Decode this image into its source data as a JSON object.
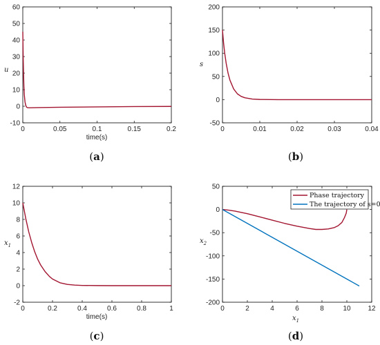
{
  "chart_data": [
    {
      "id": "a",
      "type": "line",
      "panel_label": "a",
      "xlabel": "time(s)",
      "ylabel": "u",
      "xlim": [
        0,
        0.2
      ],
      "ylim": [
        -10,
        60
      ],
      "xticks": [
        0,
        0.05,
        0.1,
        0.15,
        0.2
      ],
      "xtick_labels": [
        "0",
        "0.05",
        "0.1",
        "0.15",
        "0.2"
      ],
      "yticks": [
        -10,
        0,
        10,
        20,
        30,
        40,
        50,
        60
      ],
      "ytick_labels": [
        "-10",
        "0",
        "10",
        "20",
        "30",
        "40",
        "50",
        "60"
      ],
      "grid": false,
      "series": [
        {
          "color": "#a2142f",
          "x": [
            0,
            0.0005,
            0.001,
            0.0015,
            0.002,
            0.003,
            0.004,
            0.005,
            0.006,
            0.008,
            0.01,
            0.02,
            0.05,
            0.1,
            0.15,
            0.2
          ],
          "y": [
            45,
            30,
            20,
            12,
            7,
            2.5,
            0.5,
            -0.5,
            -0.8,
            -0.9,
            -0.9,
            -0.8,
            -0.6,
            -0.4,
            -0.2,
            -0.1
          ]
        }
      ]
    },
    {
      "id": "b",
      "type": "line",
      "panel_label": "b",
      "xlabel": "",
      "ylabel": "s",
      "xlim": [
        0,
        0.04
      ],
      "ylim": [
        -50,
        200
      ],
      "xticks": [
        0,
        0.01,
        0.02,
        0.03,
        0.04
      ],
      "xtick_labels": [
        "0",
        "0.01",
        "0.02",
        "0.03",
        "0.04"
      ],
      "yticks": [
        -50,
        0,
        50,
        100,
        150,
        200
      ],
      "ytick_labels": [
        "-50",
        "0",
        "50",
        "100",
        "150",
        "200"
      ],
      "grid": false,
      "series": [
        {
          "color": "#a2142f",
          "x": [
            0,
            0.0003,
            0.0006,
            0.001,
            0.0015,
            0.002,
            0.003,
            0.004,
            0.005,
            0.006,
            0.008,
            0.01,
            0.015,
            0.02,
            0.03,
            0.04
          ],
          "y": [
            150,
            122,
            100,
            78,
            57,
            42,
            23,
            12.5,
            7,
            4,
            1.2,
            0.4,
            0,
            0,
            0,
            0
          ]
        }
      ]
    },
    {
      "id": "c",
      "type": "line",
      "panel_label": "c",
      "xlabel": "time(s)",
      "ylabel": "x1",
      "xlim": [
        0,
        1
      ],
      "ylim": [
        -2,
        12
      ],
      "xticks": [
        0,
        0.2,
        0.4,
        0.6,
        0.8,
        1
      ],
      "xtick_labels": [
        "0",
        "0.2",
        "0.4",
        "0.6",
        "0.8",
        "1"
      ],
      "yticks": [
        -2,
        0,
        2,
        4,
        6,
        8,
        10,
        12
      ],
      "ytick_labels": [
        "-2",
        "0",
        "2",
        "4",
        "6",
        "8",
        "10",
        "12"
      ],
      "grid": false,
      "series": [
        {
          "color": "#a2142f",
          "x": [
            0,
            0.02,
            0.04,
            0.06,
            0.08,
            0.1,
            0.12,
            0.15,
            0.18,
            0.2,
            0.25,
            0.3,
            0.35,
            0.4,
            0.5,
            0.6,
            0.8,
            1.0
          ],
          "y": [
            10,
            8.1,
            6.5,
            5.2,
            4.1,
            3.2,
            2.5,
            1.7,
            1.1,
            0.8,
            0.35,
            0.15,
            0.07,
            0.03,
            0.01,
            0,
            0,
            0
          ]
        }
      ]
    },
    {
      "id": "d",
      "type": "line",
      "panel_label": "d",
      "xlabel": "x1",
      "ylabel": "x2",
      "xlim": [
        0,
        12
      ],
      "ylim": [
        -200,
        50
      ],
      "xticks": [
        0,
        2,
        4,
        6,
        8,
        10,
        12
      ],
      "xtick_labels": [
        "0",
        "2",
        "4",
        "6",
        "8",
        "10",
        "12"
      ],
      "yticks": [
        -200,
        -150,
        -100,
        -50,
        0,
        50
      ],
      "ytick_labels": [
        "-200",
        "-150",
        "-100",
        "-50",
        "0",
        "50"
      ],
      "grid": false,
      "legend_position": "top-right",
      "series": [
        {
          "name": "Phase trajectory",
          "color": "#a2142f",
          "x": [
            0,
            0.5,
            1,
            2,
            3,
            4,
            5,
            6,
            7,
            7.5,
            8,
            8.5,
            9,
            9.3,
            9.6,
            9.8,
            9.95,
            10
          ],
          "y": [
            0,
            -1.5,
            -3.5,
            -9,
            -16,
            -23,
            -30,
            -36,
            -41,
            -43,
            -43,
            -42,
            -39,
            -35,
            -28,
            -18,
            -8,
            0
          ]
        },
        {
          "name": "The trajectory of s=0",
          "color": "#0072bd",
          "x": [
            0,
            11
          ],
          "y": [
            0,
            -165
          ]
        }
      ]
    }
  ],
  "labels": {
    "u": "u",
    "s": "s",
    "x1_base": "x",
    "x1_sub": "1",
    "x2_base": "x",
    "x2_sub": "2",
    "time": "time(s)",
    "panel_a": "a",
    "panel_b": "b",
    "panel_c": "c",
    "panel_d": "d",
    "open_paren": "(",
    "close_paren": ")"
  }
}
